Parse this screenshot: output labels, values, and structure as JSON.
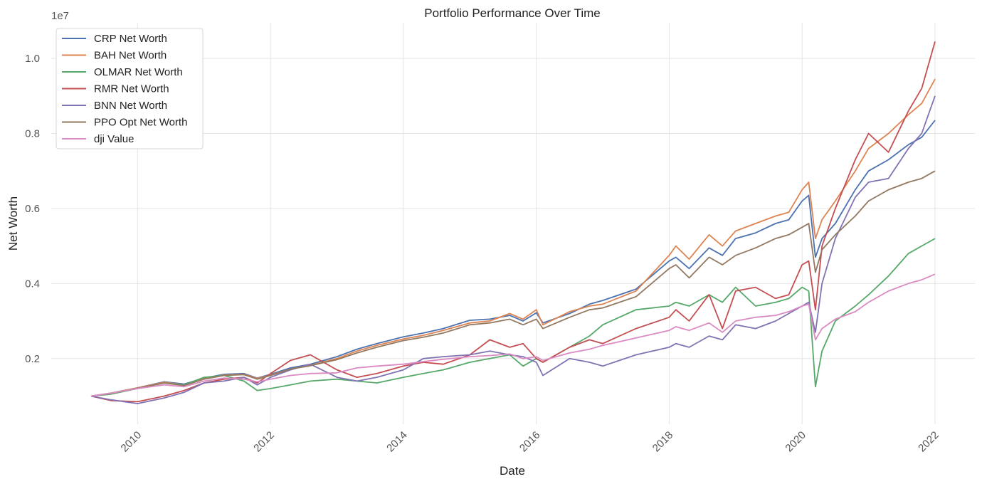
{
  "chart_data": {
    "type": "line",
    "title": "Portfolio Performance Over Time",
    "xlabel": "Date",
    "ylabel": "Net Worth",
    "y_offset_label": "1e7",
    "xlim": [
      2008.7,
      2022.6
    ],
    "ylim": [
      250000,
      10950000
    ],
    "x_ticks": [
      2010,
      2012,
      2014,
      2016,
      2018,
      2020,
      2022
    ],
    "x_tick_labels": [
      "2010",
      "2012",
      "2014",
      "2016",
      "2018",
      "2020",
      "2022"
    ],
    "y_ticks": [
      2000000,
      4000000,
      6000000,
      8000000,
      10000000
    ],
    "y_tick_labels": [
      "0.2",
      "0.4",
      "0.6",
      "0.8",
      "1.0"
    ],
    "grid": true,
    "legend_position": "top-left",
    "series": [
      {
        "name": "CRP Net Worth",
        "color": "#4c72b0",
        "x": [
          2009.3,
          2009.6,
          2010.0,
          2010.4,
          2010.7,
          2011.0,
          2011.3,
          2011.6,
          2011.8,
          2012.0,
          2012.3,
          2012.6,
          2013.0,
          2013.3,
          2013.6,
          2014.0,
          2014.3,
          2014.6,
          2015.0,
          2015.3,
          2015.6,
          2015.8,
          2016.0,
          2016.1,
          2016.5,
          2016.8,
          2017.0,
          2017.5,
          2018.0,
          2018.1,
          2018.3,
          2018.6,
          2018.8,
          2019.0,
          2019.3,
          2019.6,
          2019.8,
          2020.0,
          2020.1,
          2020.2,
          2020.3,
          2020.5,
          2020.8,
          2021.0,
          2021.3,
          2021.6,
          2021.8,
          2022.0
        ],
        "values": [
          1000000,
          1080000,
          1220000,
          1380000,
          1320000,
          1480000,
          1580000,
          1600000,
          1480000,
          1580000,
          1750000,
          1850000,
          2050000,
          2250000,
          2400000,
          2580000,
          2680000,
          2800000,
          3020000,
          3050000,
          3150000,
          3000000,
          3220000,
          2950000,
          3200000,
          3450000,
          3550000,
          3850000,
          4600000,
          4700000,
          4400000,
          4950000,
          4750000,
          5200000,
          5350000,
          5600000,
          5700000,
          6200000,
          6350000,
          4700000,
          5200000,
          5600000,
          6500000,
          7000000,
          7300000,
          7700000,
          7900000,
          8350000
        ]
      },
      {
        "name": "BAH Net Worth",
        "color": "#dd8452",
        "x": [
          2009.3,
          2009.6,
          2010.0,
          2010.4,
          2010.7,
          2011.0,
          2011.3,
          2011.6,
          2011.8,
          2012.0,
          2012.3,
          2012.6,
          2013.0,
          2013.3,
          2013.6,
          2014.0,
          2014.3,
          2014.6,
          2015.0,
          2015.3,
          2015.6,
          2015.8,
          2016.0,
          2016.1,
          2016.5,
          2016.8,
          2017.0,
          2017.5,
          2018.0,
          2018.1,
          2018.3,
          2018.6,
          2018.8,
          2019.0,
          2019.3,
          2019.6,
          2019.8,
          2020.0,
          2020.1,
          2020.2,
          2020.3,
          2020.5,
          2020.8,
          2021.0,
          2021.3,
          2021.6,
          2021.8,
          2022.0
        ],
        "values": [
          1000000,
          1080000,
          1220000,
          1370000,
          1300000,
          1460000,
          1560000,
          1580000,
          1470000,
          1560000,
          1720000,
          1820000,
          2000000,
          2200000,
          2350000,
          2520000,
          2620000,
          2750000,
          2950000,
          3000000,
          3200000,
          3050000,
          3300000,
          2900000,
          3250000,
          3400000,
          3450000,
          3800000,
          4750000,
          5000000,
          4650000,
          5300000,
          5000000,
          5400000,
          5600000,
          5800000,
          5900000,
          6500000,
          6700000,
          5200000,
          5700000,
          6200000,
          7000000,
          7600000,
          8000000,
          8500000,
          8800000,
          9450000
        ]
      },
      {
        "name": "OLMAR Net Worth",
        "color": "#55a868",
        "x": [
          2009.3,
          2009.6,
          2010.0,
          2010.4,
          2010.7,
          2011.0,
          2011.3,
          2011.6,
          2011.8,
          2012.0,
          2012.3,
          2012.6,
          2013.0,
          2013.3,
          2013.6,
          2014.0,
          2014.3,
          2014.6,
          2015.0,
          2015.3,
          2015.6,
          2015.8,
          2016.0,
          2016.1,
          2016.5,
          2016.8,
          2017.0,
          2017.5,
          2018.0,
          2018.1,
          2018.3,
          2018.6,
          2018.8,
          2019.0,
          2019.3,
          2019.6,
          2019.8,
          2020.0,
          2020.1,
          2020.2,
          2020.3,
          2020.5,
          2020.8,
          2021.0,
          2021.3,
          2021.6,
          2021.8,
          2022.0
        ],
        "values": [
          1000000,
          1050000,
          1200000,
          1350000,
          1300000,
          1500000,
          1550000,
          1400000,
          1150000,
          1200000,
          1300000,
          1400000,
          1450000,
          1400000,
          1350000,
          1500000,
          1600000,
          1700000,
          1900000,
          2000000,
          2100000,
          1800000,
          2000000,
          1900000,
          2300000,
          2600000,
          2900000,
          3300000,
          3400000,
          3500000,
          3400000,
          3700000,
          3500000,
          3900000,
          3400000,
          3500000,
          3600000,
          3900000,
          3800000,
          1250000,
          2200000,
          3000000,
          3400000,
          3700000,
          4200000,
          4800000,
          5000000,
          5200000
        ]
      },
      {
        "name": "RMR Net Worth",
        "color": "#c44e52",
        "x": [
          2009.3,
          2009.6,
          2010.0,
          2010.4,
          2010.7,
          2011.0,
          2011.3,
          2011.6,
          2011.8,
          2012.0,
          2012.3,
          2012.6,
          2013.0,
          2013.3,
          2013.6,
          2014.0,
          2014.3,
          2014.6,
          2015.0,
          2015.3,
          2015.6,
          2015.8,
          2016.0,
          2016.1,
          2016.5,
          2016.8,
          2017.0,
          2017.5,
          2018.0,
          2018.1,
          2018.3,
          2018.6,
          2018.8,
          2019.0,
          2019.3,
          2019.6,
          2019.8,
          2020.0,
          2020.1,
          2020.2,
          2020.3,
          2020.5,
          2020.8,
          2021.0,
          2021.3,
          2021.6,
          2021.8,
          2022.0
        ],
        "values": [
          1000000,
          880000,
          850000,
          1000000,
          1150000,
          1350000,
          1450000,
          1500000,
          1350000,
          1600000,
          1950000,
          2100000,
          1700000,
          1500000,
          1600000,
          1800000,
          1900000,
          1850000,
          2100000,
          2500000,
          2300000,
          2400000,
          2000000,
          1900000,
          2300000,
          2500000,
          2400000,
          2800000,
          3100000,
          3300000,
          3000000,
          3700000,
          2800000,
          3800000,
          3900000,
          3600000,
          3700000,
          4500000,
          4600000,
          3300000,
          5000000,
          6000000,
          7300000,
          8000000,
          7500000,
          8600000,
          9200000,
          10450000
        ]
      },
      {
        "name": "BNN Net Worth",
        "color": "#8172b3",
        "x": [
          2009.3,
          2009.6,
          2010.0,
          2010.4,
          2010.7,
          2011.0,
          2011.3,
          2011.6,
          2011.8,
          2012.0,
          2012.3,
          2012.6,
          2013.0,
          2013.3,
          2013.6,
          2014.0,
          2014.3,
          2014.6,
          2015.0,
          2015.3,
          2015.6,
          2015.8,
          2016.0,
          2016.1,
          2016.5,
          2016.8,
          2017.0,
          2017.5,
          2018.0,
          2018.1,
          2018.3,
          2018.6,
          2018.8,
          2019.0,
          2019.3,
          2019.6,
          2019.8,
          2020.0,
          2020.1,
          2020.2,
          2020.3,
          2020.5,
          2020.8,
          2021.0,
          2021.3,
          2021.6,
          2021.8,
          2022.0
        ],
        "values": [
          1000000,
          900000,
          800000,
          950000,
          1100000,
          1350000,
          1400000,
          1500000,
          1300000,
          1500000,
          1700000,
          1850000,
          1500000,
          1400000,
          1500000,
          1700000,
          2000000,
          2050000,
          2100000,
          2200000,
          2100000,
          2050000,
          1900000,
          1550000,
          2000000,
          1900000,
          1800000,
          2100000,
          2300000,
          2400000,
          2300000,
          2600000,
          2500000,
          2900000,
          2800000,
          3000000,
          3200000,
          3400000,
          3500000,
          2700000,
          4000000,
          5200000,
          6300000,
          6700000,
          6800000,
          7600000,
          8000000,
          9000000
        ]
      },
      {
        "name": "PPO Opt Net Worth",
        "color": "#937860",
        "x": [
          2009.3,
          2009.6,
          2010.0,
          2010.4,
          2010.7,
          2011.0,
          2011.3,
          2011.6,
          2011.8,
          2012.0,
          2012.3,
          2012.6,
          2013.0,
          2013.3,
          2013.6,
          2014.0,
          2014.3,
          2014.6,
          2015.0,
          2015.3,
          2015.6,
          2015.8,
          2016.0,
          2016.1,
          2016.5,
          2016.8,
          2017.0,
          2017.5,
          2018.0,
          2018.1,
          2018.3,
          2018.6,
          2018.8,
          2019.0,
          2019.3,
          2019.6,
          2019.8,
          2020.0,
          2020.1,
          2020.2,
          2020.3,
          2020.5,
          2020.8,
          2021.0,
          2021.3,
          2021.6,
          2021.8,
          2022.0
        ],
        "values": [
          1000000,
          1070000,
          1210000,
          1350000,
          1280000,
          1450000,
          1550000,
          1570000,
          1450000,
          1550000,
          1720000,
          1810000,
          1970000,
          2150000,
          2300000,
          2480000,
          2570000,
          2680000,
          2900000,
          2950000,
          3050000,
          2900000,
          3050000,
          2800000,
          3100000,
          3300000,
          3350000,
          3650000,
          4400000,
          4500000,
          4150000,
          4700000,
          4500000,
          4750000,
          4950000,
          5200000,
          5300000,
          5500000,
          5600000,
          4300000,
          4900000,
          5300000,
          5800000,
          6200000,
          6500000,
          6700000,
          6800000,
          7000000
        ]
      },
      {
        "name": "dji Value",
        "color": "#da8bc3",
        "x": [
          2009.3,
          2009.6,
          2010.0,
          2010.4,
          2010.7,
          2011.0,
          2011.3,
          2011.6,
          2011.8,
          2012.0,
          2012.3,
          2012.6,
          2013.0,
          2013.3,
          2013.6,
          2014.0,
          2014.3,
          2014.6,
          2015.0,
          2015.3,
          2015.6,
          2015.8,
          2016.0,
          2016.1,
          2016.5,
          2016.8,
          2017.0,
          2017.5,
          2018.0,
          2018.1,
          2018.3,
          2018.6,
          2018.8,
          2019.0,
          2019.3,
          2019.6,
          2019.8,
          2020.0,
          2020.1,
          2020.2,
          2020.3,
          2020.5,
          2020.8,
          2021.0,
          2021.3,
          2021.6,
          2021.8,
          2022.0
        ],
        "values": [
          1000000,
          1080000,
          1200000,
          1300000,
          1250000,
          1400000,
          1480000,
          1450000,
          1380000,
          1450000,
          1550000,
          1600000,
          1620000,
          1750000,
          1800000,
          1850000,
          1920000,
          1980000,
          2050000,
          2080000,
          2120000,
          2000000,
          2050000,
          1950000,
          2150000,
          2250000,
          2350000,
          2550000,
          2750000,
          2850000,
          2750000,
          2950000,
          2700000,
          3000000,
          3100000,
          3150000,
          3250000,
          3400000,
          3450000,
          2500000,
          2800000,
          3050000,
          3250000,
          3500000,
          3800000,
          4000000,
          4100000,
          4250000
        ]
      }
    ]
  }
}
